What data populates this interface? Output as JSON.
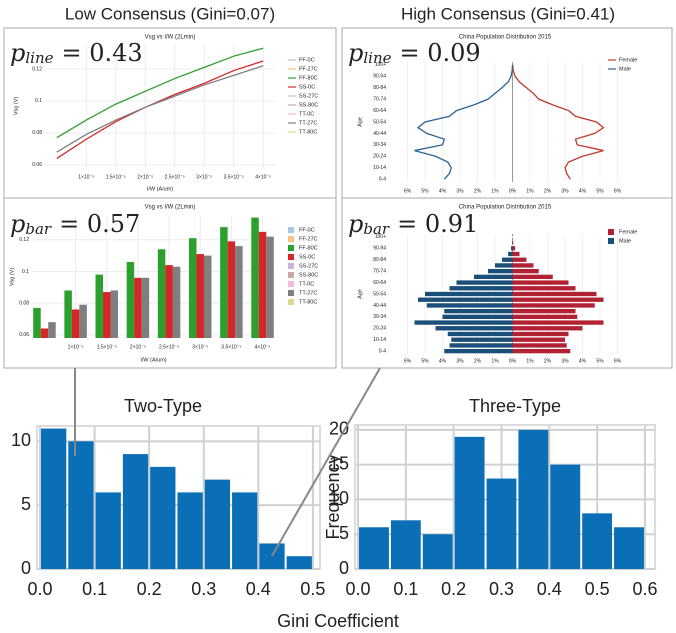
{
  "panel_titles": [
    "Low Consensus (Gini=0.07)",
    "High Consensus (Gini=0.41)"
  ],
  "xlabel": "Gini Coefficient",
  "chart_data": [
    {
      "type": "line",
      "title": "Vsg vs I/W (2Lmin)",
      "xlabel": "I/W (A/um)",
      "ylabel": "Vsg (V)",
      "annotation": {
        "symbol": "p",
        "subscript": "line",
        "text": "= 0.43"
      },
      "x": [
        5e-06,
        1e-05,
        1.5e-05,
        2e-05,
        2.5e-05,
        3e-05,
        3.5e-05,
        4e-05
      ],
      "xlim": [
        3e-06,
        4.2e-05
      ],
      "xticks": [
        {
          "value": 1e-05,
          "label": "1×10⁻⁵"
        },
        {
          "value": 1.5e-05,
          "label": "1.5×10⁻⁵"
        },
        {
          "value": 2e-05,
          "label": "2×10⁻⁵"
        },
        {
          "value": 2.5e-05,
          "label": "2.5×10⁻⁵"
        },
        {
          "value": 3e-05,
          "label": "3×10⁻⁵"
        },
        {
          "value": 3.5e-05,
          "label": "3.5×10⁻⁵"
        },
        {
          "value": 4e-05,
          "label": "4×10⁻⁵"
        }
      ],
      "ylim": [
        0.058,
        0.135
      ],
      "yticks": [
        0.06,
        0.08,
        0.1,
        0.12
      ],
      "grid": true,
      "series": [
        {
          "name": "FF-0C",
          "color": "#a6c8e0",
          "hidden": true
        },
        {
          "name": "FF-27C",
          "color": "#f5c28a",
          "hidden": true
        },
        {
          "name": "FF-80C",
          "color": "#2ca02c",
          "values": [
            0.077,
            0.088,
            0.098,
            0.106,
            0.114,
            0.121,
            0.128,
            0.133
          ]
        },
        {
          "name": "SS-0C",
          "color": "#d62728",
          "values": [
            0.064,
            0.076,
            0.087,
            0.096,
            0.104,
            0.111,
            0.119,
            0.125
          ]
        },
        {
          "name": "SS-27C",
          "color": "#c9b3d9",
          "hidden": true
        },
        {
          "name": "SS-80C",
          "color": "#c9a9a0",
          "hidden": true
        },
        {
          "name": "TT-0C",
          "color": "#f0b8dc",
          "hidden": true
        },
        {
          "name": "TT-27C",
          "color": "#7f7f7f",
          "values": [
            0.068,
            0.079,
            0.088,
            0.096,
            0.103,
            0.11,
            0.116,
            0.122
          ]
        },
        {
          "name": "TT-80C",
          "color": "#dbdb8d",
          "hidden": true
        }
      ]
    },
    {
      "type": "bar",
      "title": "Vsg vs I/W (2Lmin)",
      "xlabel": "I/W (A/um)",
      "ylabel": "Vsg (V)",
      "annotation": {
        "symbol": "p",
        "subscript": "bar",
        "text": "= 0.57"
      },
      "x": [
        5e-06,
        1e-05,
        1.5e-05,
        2e-05,
        2.5e-05,
        3e-05,
        3.5e-05,
        4e-05
      ],
      "xlim": [
        3e-06,
        4.2e-05
      ],
      "xticks": [
        {
          "value": 1e-05,
          "label": "1×10⁻⁵"
        },
        {
          "value": 1.5e-05,
          "label": "1.5×10⁻⁵"
        },
        {
          "value": 2e-05,
          "label": "2×10⁻⁵"
        },
        {
          "value": 2.5e-05,
          "label": "2.5×10⁻⁵"
        },
        {
          "value": 3e-05,
          "label": "3×10⁻⁵"
        },
        {
          "value": 3.5e-05,
          "label": "3.5×10⁻⁵"
        },
        {
          "value": 4e-05,
          "label": "4×10⁻⁵"
        }
      ],
      "ylim": [
        0.058,
        0.135
      ],
      "yticks": [
        0.06,
        0.08,
        0.1,
        0.12
      ],
      "grid": true,
      "series": [
        {
          "name": "FF-0C",
          "color": "#a6c8e0",
          "hidden": true
        },
        {
          "name": "FF-27C",
          "color": "#f5c28a",
          "hidden": true
        },
        {
          "name": "FF-80C",
          "color": "#2ca02c",
          "values": [
            0.077,
            0.088,
            0.098,
            0.106,
            0.114,
            0.121,
            0.128,
            0.134
          ]
        },
        {
          "name": "SS-0C",
          "color": "#d62728",
          "values": [
            0.064,
            0.076,
            0.087,
            0.096,
            0.104,
            0.111,
            0.119,
            0.125
          ]
        },
        {
          "name": "SS-27C",
          "color": "#c9b3d9",
          "hidden": true
        },
        {
          "name": "SS-80C",
          "color": "#c9a9a0",
          "hidden": true
        },
        {
          "name": "TT-0C",
          "color": "#f0b8dc",
          "hidden": true
        },
        {
          "name": "TT-27C",
          "color": "#7f7f7f",
          "values": [
            0.068,
            0.079,
            0.088,
            0.096,
            0.103,
            0.11,
            0.116,
            0.122
          ]
        },
        {
          "name": "TT-80C",
          "color": "#dbdb8d",
          "hidden": true
        }
      ]
    },
    {
      "type": "pyramid",
      "marks": "line",
      "title": "China Population Distribution 2015",
      "ylabel": "Age",
      "annotation": {
        "symbol": "p",
        "subscript": "line",
        "text": "= 0.09"
      },
      "categories": [
        "0-4",
        null,
        "10-14",
        null,
        "20-24",
        null,
        "30-34",
        null,
        "40-44",
        null,
        "50-54",
        null,
        "60-64",
        null,
        "70-74",
        null,
        "80-84",
        null,
        "90-94",
        null,
        "100+"
      ],
      "xlim": [
        -7,
        7
      ],
      "xticks": [
        {
          "value": -6,
          "label": "6%"
        },
        {
          "value": -5,
          "label": "5%"
        },
        {
          "value": -4,
          "label": "4%"
        },
        {
          "value": -3,
          "label": "3%"
        },
        {
          "value": -2,
          "label": "2%"
        },
        {
          "value": -1,
          "label": "1%"
        },
        {
          "value": 0,
          "label": "0%"
        },
        {
          "value": 1,
          "label": "1%"
        },
        {
          "value": 2,
          "label": "2%"
        },
        {
          "value": 3,
          "label": "3%"
        },
        {
          "value": 4,
          "label": "4%"
        },
        {
          "value": 5,
          "label": "5%"
        },
        {
          "value": 6,
          "label": "6%"
        }
      ],
      "series": [
        {
          "name": "Female",
          "color": "#c0392b",
          "values": [
            3.3,
            3.1,
            3.0,
            3.2,
            4.0,
            5.2,
            3.7,
            3.6,
            4.7,
            5.2,
            4.8,
            3.6,
            3.2,
            2.3,
            1.5,
            1.2,
            0.8,
            0.4,
            0.15,
            0.04,
            0.01
          ]
        },
        {
          "name": "Male",
          "color": "#2b6394",
          "values": [
            -3.9,
            -3.6,
            -3.5,
            -3.7,
            -4.4,
            -5.6,
            -4.0,
            -3.9,
            -4.9,
            -5.4,
            -5.0,
            -3.6,
            -3.2,
            -2.2,
            -1.4,
            -1.0,
            -0.6,
            -0.25,
            -0.08,
            -0.02,
            0
          ]
        }
      ]
    },
    {
      "type": "pyramid",
      "marks": "bar",
      "title": "China Population Distribution 2015",
      "ylabel": "Age",
      "annotation": {
        "symbol": "p",
        "subscript": "bar",
        "text": "= 0.91"
      },
      "categories": [
        "0-4",
        null,
        "10-14",
        null,
        "20-24",
        null,
        "30-34",
        null,
        "40-44",
        null,
        "50-54",
        null,
        "60-64",
        null,
        "70-74",
        null,
        "80-84",
        null,
        "90-94",
        null,
        "100+"
      ],
      "xlim": [
        -7,
        7
      ],
      "xticks": [
        {
          "value": -6,
          "label": "6%"
        },
        {
          "value": -5,
          "label": "5%"
        },
        {
          "value": -4,
          "label": "4%"
        },
        {
          "value": -3,
          "label": "3%"
        },
        {
          "value": -2,
          "label": "2%"
        },
        {
          "value": -1,
          "label": "1%"
        },
        {
          "value": 0,
          "label": "0%"
        },
        {
          "value": 1,
          "label": "1%"
        },
        {
          "value": 2,
          "label": "2%"
        },
        {
          "value": 3,
          "label": "3%"
        },
        {
          "value": 4,
          "label": "4%"
        },
        {
          "value": 5,
          "label": "5%"
        },
        {
          "value": 6,
          "label": "6%"
        }
      ],
      "series": [
        {
          "name": "Female",
          "color": "#b22234",
          "values": [
            3.3,
            3.1,
            3.0,
            3.2,
            4.0,
            5.2,
            3.7,
            3.6,
            4.7,
            5.2,
            4.8,
            3.6,
            3.2,
            2.3,
            1.5,
            1.2,
            0.8,
            0.4,
            0.15,
            0.04,
            0.01
          ]
        },
        {
          "name": "Male",
          "color": "#1a4f7a",
          "values": [
            -3.9,
            -3.6,
            -3.5,
            -3.7,
            -4.4,
            -5.6,
            -4.0,
            -3.9,
            -4.9,
            -5.4,
            -5.0,
            -3.6,
            -3.2,
            -2.2,
            -1.4,
            -1.0,
            -0.6,
            -0.25,
            -0.08,
            -0.02,
            0
          ]
        }
      ]
    },
    {
      "type": "histogram",
      "title": "Two-Type",
      "color": "#0a6fb7",
      "bins": [
        0,
        0.05,
        0.1,
        0.15,
        0.2,
        0.25,
        0.3,
        0.35,
        0.4,
        0.45,
        0.5
      ],
      "values": [
        11,
        10,
        6,
        9,
        8,
        6,
        7,
        6,
        2,
        1
      ],
      "xlim": [
        -0.0055,
        0.513
      ],
      "xticks": [
        {
          "value": 0,
          "label": "0.0"
        },
        0.1,
        0.2,
        0.3,
        0.4,
        0.5
      ],
      "ylim": [
        0,
        11.2
      ],
      "yticks": [
        0,
        5,
        10
      ],
      "grid": true
    },
    {
      "type": "histogram",
      "title": "Three-Type",
      "ylabel": "Frequency",
      "color": "#0a6fb7",
      "bins": [
        0,
        0.0667,
        0.1333,
        0.2,
        0.2667,
        0.3333,
        0.4,
        0.4667,
        0.5333,
        0.6
      ],
      "values": [
        6,
        7,
        5,
        19,
        13,
        20,
        15,
        8,
        6
      ],
      "xlim": [
        -0.0063,
        0.621
      ],
      "xticks": [
        {
          "value": 0,
          "label": "0.0"
        },
        0.1,
        0.2,
        0.3,
        0.4,
        0.5,
        0.6
      ],
      "ylim": [
        0,
        20.7
      ],
      "yticks": [
        0,
        5,
        10,
        15,
        20
      ],
      "grid": true
    }
  ]
}
